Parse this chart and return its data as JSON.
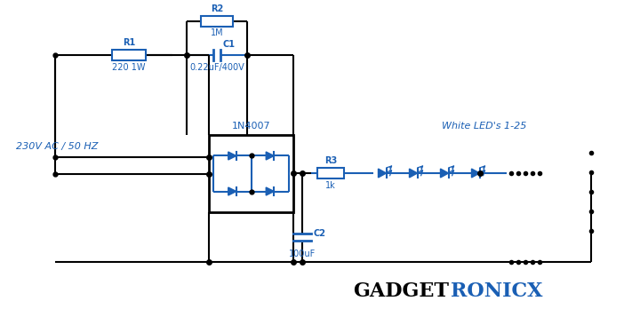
{
  "bg_color": "#ffffff",
  "wire_color": "#000000",
  "cc": "#1a5fb4",
  "label_230v": "230V AC / 50 HZ",
  "label_r1": "R1",
  "label_r1_val": "220 1W",
  "label_r2": "R2",
  "label_r2_val": "1M",
  "label_c1": "C1",
  "label_c1_val": "0.22uF/400V",
  "label_diode": "1N4007",
  "label_leds": "White LED's 1-25",
  "label_r3": "R3",
  "label_r3_val": "1k",
  "label_c2": "C2",
  "label_c2_val": "100uF",
  "title1": "GADGET",
  "title2": "RONICX",
  "title1_color": "#000000",
  "title2_color": "#1a5fb4"
}
